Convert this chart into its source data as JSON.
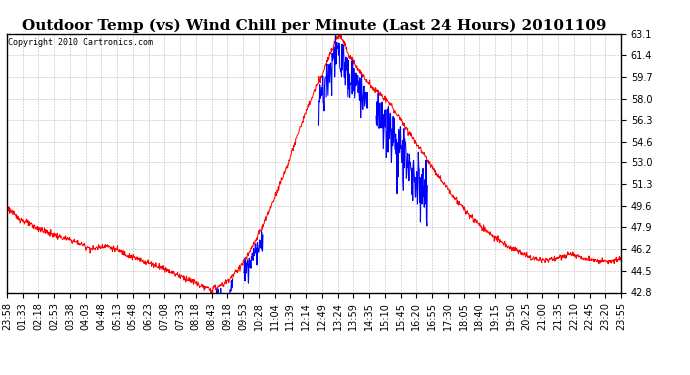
{
  "title": "Outdoor Temp (vs) Wind Chill per Minute (Last 24 Hours) 20101109",
  "copyright": "Copyright 2010 Cartronics.com",
  "y_min": 42.8,
  "y_max": 63.1,
  "y_ticks": [
    42.8,
    44.5,
    46.2,
    47.9,
    49.6,
    51.3,
    53.0,
    54.6,
    56.3,
    58.0,
    59.7,
    61.4,
    63.1
  ],
  "x_labels": [
    "23:58",
    "01:33",
    "02:18",
    "02:53",
    "03:38",
    "04:03",
    "04:48",
    "05:13",
    "05:48",
    "06:23",
    "07:08",
    "07:33",
    "08:18",
    "08:43",
    "09:18",
    "09:53",
    "10:28",
    "11:04",
    "11:39",
    "12:14",
    "12:49",
    "13:24",
    "13:59",
    "14:35",
    "15:10",
    "15:45",
    "16:20",
    "16:55",
    "17:30",
    "18:05",
    "18:40",
    "19:15",
    "19:50",
    "20:25",
    "21:00",
    "21:35",
    "22:10",
    "22:45",
    "23:20",
    "23:55"
  ],
  "background_color": "#ffffff",
  "grid_color": "#aaaaaa",
  "line_color_red": "#ff0000",
  "line_color_blue": "#0000ff",
  "title_fontsize": 11,
  "tick_fontsize": 7,
  "copyright_fontsize": 6
}
